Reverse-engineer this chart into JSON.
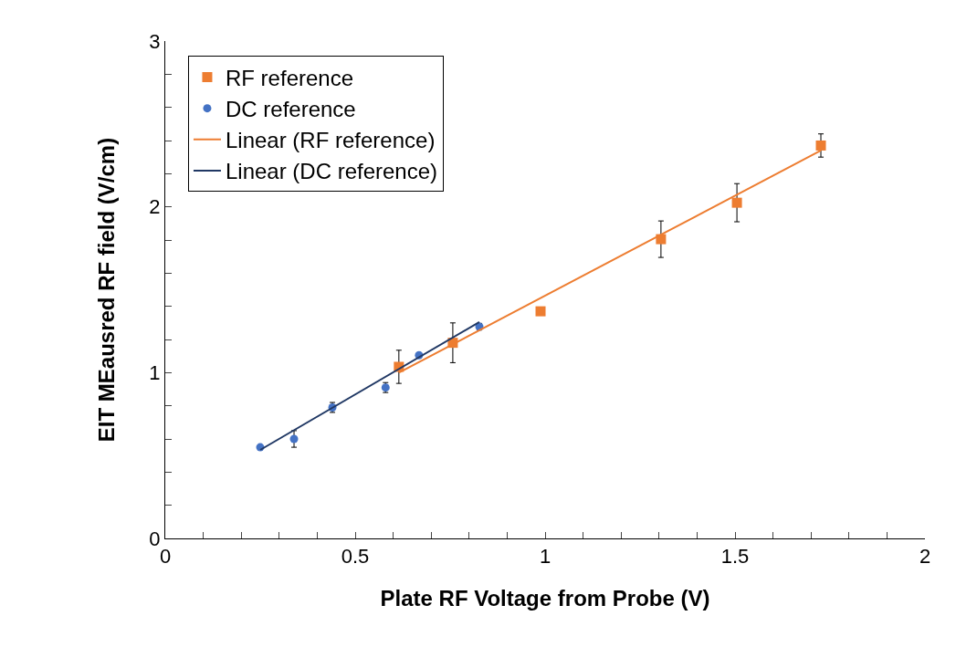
{
  "chart_data": {
    "type": "scatter",
    "xlabel": "Plate RF Voltage from Probe (V)",
    "ylabel": "EIT MEausred RF field (V/cm)",
    "xlim": [
      0,
      2
    ],
    "ylim": [
      0,
      3
    ],
    "xticks": [
      0,
      {
        "value": 0.1,
        "label": null
      },
      {
        "value": 0.2,
        "label": null
      },
      {
        "value": 0.3,
        "label": null
      },
      {
        "value": 0.4,
        "label": null
      },
      0.5,
      {
        "value": 0.6,
        "label": null
      },
      {
        "value": 0.7,
        "label": null
      },
      {
        "value": 0.8,
        "label": null
      },
      {
        "value": 0.9,
        "label": null
      },
      1,
      {
        "value": 1.1,
        "label": null
      },
      {
        "value": 1.2,
        "label": null
      },
      {
        "value": 1.3,
        "label": null
      },
      {
        "value": 1.4,
        "label": null
      },
      1.5,
      {
        "value": 1.6,
        "label": null
      },
      {
        "value": 1.7,
        "label": null
      },
      {
        "value": 1.8,
        "label": null
      },
      {
        "value": 1.9,
        "label": null
      },
      2
    ],
    "yticks": [
      0,
      {
        "value": 0.2,
        "label": null
      },
      {
        "value": 0.4,
        "label": null
      },
      {
        "value": 0.6,
        "label": null
      },
      {
        "value": 0.8,
        "label": null
      },
      1,
      {
        "value": 1.2,
        "label": null
      },
      {
        "value": 1.4,
        "label": null
      },
      {
        "value": 1.6,
        "label": null
      },
      {
        "value": 1.8,
        "label": null
      },
      2,
      {
        "value": 2.2,
        "label": null
      },
      {
        "value": 2.4,
        "label": null
      },
      {
        "value": 2.6,
        "label": null
      },
      {
        "value": 2.8,
        "label": null
      },
      3
    ],
    "grid": false,
    "legend": "top left",
    "series": [
      {
        "name": "RF reference",
        "type": "scatter",
        "marker": "square",
        "color": "#ed7d31",
        "x": [
          0.615,
          0.757,
          0.988,
          1.305,
          1.505,
          1.726
        ],
        "values": [
          1.035,
          1.18,
          1.37,
          1.805,
          2.025,
          2.37
        ],
        "errors": [
          0.1,
          0.12,
          null,
          0.11,
          0.115,
          0.07
        ]
      },
      {
        "name": "DC reference",
        "type": "scatter",
        "marker": "circle",
        "color": "#4472c4",
        "x": [
          0.25,
          0.339,
          0.44,
          0.58,
          0.668,
          0.827
        ],
        "values": [
          0.55,
          0.6,
          0.79,
          0.91,
          1.105,
          1.277
        ],
        "errors": [
          null,
          0.05,
          0.03,
          0.03,
          null,
          0.02
        ]
      },
      {
        "name": "Linear (RF reference)",
        "type": "line",
        "marker": "none",
        "color": "#ed7d31",
        "x": [
          0.615,
          1.726
        ],
        "values": [
          1.0,
          2.34
        ]
      },
      {
        "name": "Linear (DC reference)",
        "type": "line",
        "marker": "none",
        "color": "#203864",
        "x": [
          0.25,
          0.827
        ],
        "values": [
          0.534,
          1.305
        ]
      }
    ]
  }
}
